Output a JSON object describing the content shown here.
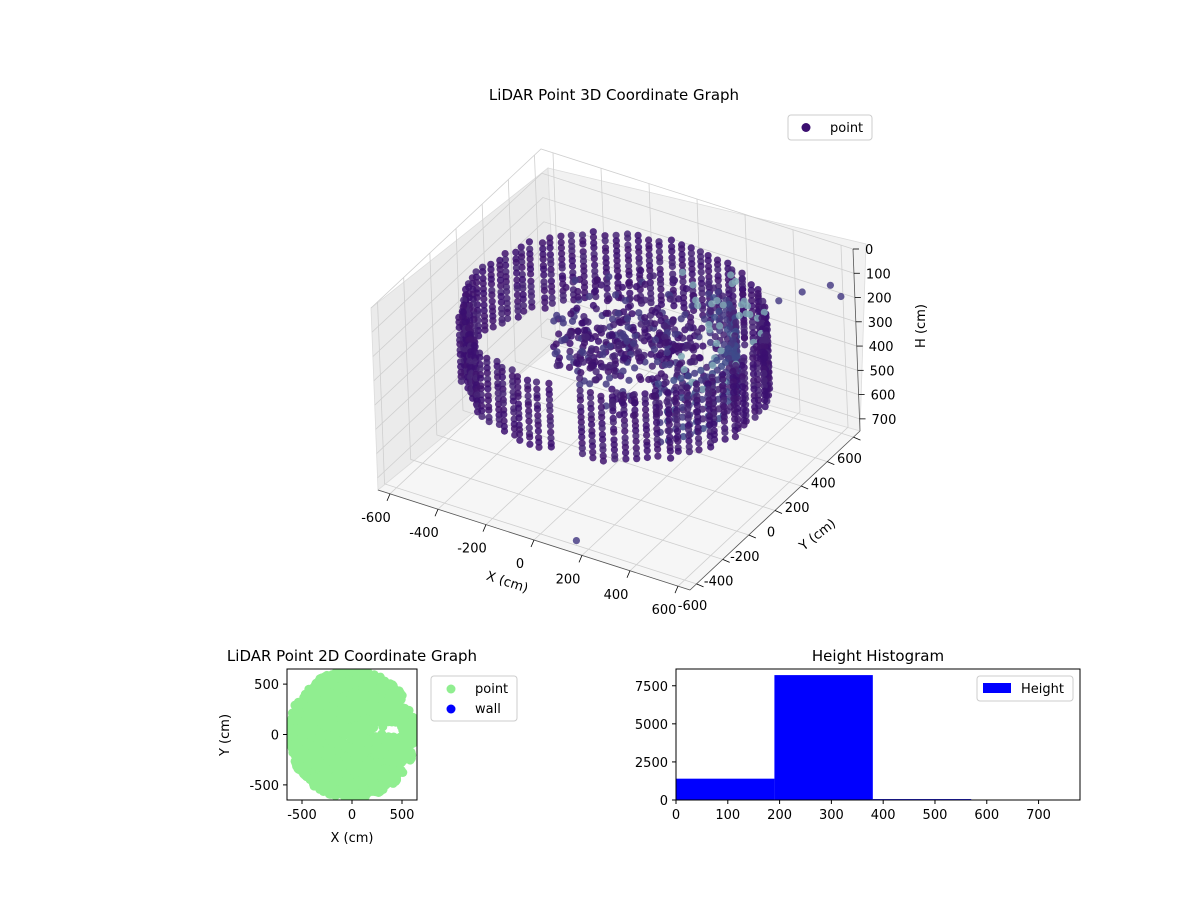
{
  "chart_data": [
    {
      "type": "scatter",
      "projection": "3d",
      "title": "LiDAR Point 3D Coordinate Graph",
      "xlabel": "X (cm)",
      "ylabel": "Y (cm)",
      "zlabel": "H (cm)",
      "xlim": [
        -650,
        650
      ],
      "ylim": [
        -650,
        650
      ],
      "zlim": [
        0,
        750
      ],
      "z_inverted": true,
      "xticks": [
        -600,
        -400,
        -200,
        0,
        200,
        400,
        600
      ],
      "yticks": [
        -600,
        -400,
        -200,
        0,
        200,
        400,
        600
      ],
      "zticks": [
        0,
        100,
        200,
        300,
        400,
        500,
        600,
        700
      ],
      "grid": true,
      "legend": {
        "position": "top-right",
        "entries": [
          "point"
        ]
      },
      "series": [
        {
          "name": "point",
          "color": "#3b0f70",
          "colormap": "viridis-dark",
          "shape": "ring of wall points around the scanner with interior clutter",
          "ring_radius": 560,
          "wall_h": [
            150,
            420
          ],
          "outliers": [
            {
              "x": 560,
              "y": 420,
              "h": 90
            },
            {
              "x": 600,
              "y": 560,
              "h": 120
            },
            {
              "x": 620,
              "y": 600,
              "h": 180
            },
            {
              "x": 500,
              "y": 350,
              "h": 110
            },
            {
              "x": 150,
              "y": -600,
              "h": 730
            }
          ]
        }
      ]
    },
    {
      "type": "scatter",
      "title": "LiDAR Point 2D Coordinate Graph",
      "xlabel": "X (cm)",
      "ylabel": "Y (cm)",
      "xlim": [
        -650,
        650
      ],
      "ylim": [
        -650,
        650
      ],
      "xticks": [
        -500,
        0,
        500
      ],
      "yticks": [
        -500,
        0,
        500
      ],
      "legend": {
        "position": "outside-right",
        "entries": [
          "point",
          "wall"
        ]
      },
      "series": [
        {
          "name": "point",
          "color": "#90ee90"
        },
        {
          "name": "wall",
          "color": "#0000ff"
        }
      ]
    },
    {
      "type": "bar",
      "subtype": "histogram",
      "title": "Height Histogram",
      "xlim": [
        0,
        780
      ],
      "ylim": [
        0,
        8600
      ],
      "xticks": [
        0,
        100,
        200,
        300,
        400,
        500,
        600,
        700
      ],
      "yticks": [
        0,
        2500,
        5000,
        7500
      ],
      "legend": {
        "position": "top-right",
        "entries": [
          "Height"
        ]
      },
      "series": [
        {
          "name": "Height",
          "color": "#0000ff",
          "bins": [
            {
              "x0": 0,
              "x1": 190,
              "count": 1400
            },
            {
              "x0": 190,
              "x1": 380,
              "count": 8200
            },
            {
              "x0": 380,
              "x1": 570,
              "count": 60
            },
            {
              "x0": 570,
              "x1": 760,
              "count": 8
            }
          ]
        }
      ]
    }
  ]
}
